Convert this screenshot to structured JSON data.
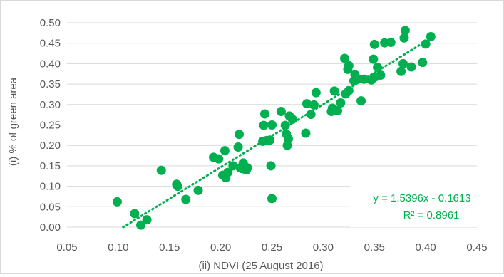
{
  "chart_data": {
    "type": "scatter",
    "xlabel": "(ii) NDVI (25 August 2016)",
    "ylabel": "(i) % of green area",
    "xlim": [
      0.05,
      0.45
    ],
    "ylim": [
      0.0,
      0.5
    ],
    "x_ticks": [
      "0.05",
      "0.10",
      "0.15",
      "0.20",
      "0.25",
      "0.30",
      "0.35",
      "0.40",
      "0.45"
    ],
    "y_ticks": [
      "0.00",
      "0.05",
      "0.10",
      "0.15",
      "0.20",
      "0.25",
      "0.30",
      "0.35",
      "0.40",
      "0.45",
      "0.50"
    ],
    "grid": "horizontal",
    "marker_color": "#00b050",
    "trendline": {
      "style": "dotted",
      "slope": 1.5396,
      "intercept": -0.1613,
      "equation": "y = 1.5396x - 0.1613",
      "r_squared": "R² = 0.8961"
    },
    "points": [
      [
        0.099,
        0.062
      ],
      [
        0.116,
        0.033
      ],
      [
        0.122,
        0.005
      ],
      [
        0.128,
        0.018
      ],
      [
        0.142,
        0.139
      ],
      [
        0.157,
        0.105
      ],
      [
        0.158,
        0.1
      ],
      [
        0.166,
        0.068
      ],
      [
        0.178,
        0.09
      ],
      [
        0.193,
        0.171
      ],
      [
        0.198,
        0.167
      ],
      [
        0.202,
        0.127
      ],
      [
        0.204,
        0.187
      ],
      [
        0.205,
        0.121
      ],
      [
        0.207,
        0.134
      ],
      [
        0.212,
        0.15
      ],
      [
        0.217,
        0.196
      ],
      [
        0.218,
        0.227
      ],
      [
        0.219,
        0.145
      ],
      [
        0.221,
        0.143
      ],
      [
        0.222,
        0.157
      ],
      [
        0.225,
        0.14
      ],
      [
        0.226,
        0.145
      ],
      [
        0.241,
        0.21
      ],
      [
        0.242,
        0.249
      ],
      [
        0.243,
        0.277
      ],
      [
        0.245,
        0.212
      ],
      [
        0.248,
        0.213
      ],
      [
        0.249,
        0.15
      ],
      [
        0.25,
        0.25
      ],
      [
        0.25,
        0.07
      ],
      [
        0.259,
        0.283
      ],
      [
        0.263,
        0.249
      ],
      [
        0.264,
        0.228
      ],
      [
        0.265,
        0.2
      ],
      [
        0.266,
        0.216
      ],
      [
        0.267,
        0.272
      ],
      [
        0.27,
        0.264
      ],
      [
        0.283,
        0.23
      ],
      [
        0.284,
        0.302
      ],
      [
        0.288,
        0.276
      ],
      [
        0.291,
        0.299
      ],
      [
        0.293,
        0.329
      ],
      [
        0.308,
        0.283
      ],
      [
        0.309,
        0.291
      ],
      [
        0.311,
        0.333
      ],
      [
        0.314,
        0.285
      ],
      [
        0.317,
        0.304
      ],
      [
        0.321,
        0.413
      ],
      [
        0.322,
        0.326
      ],
      [
        0.324,
        0.386
      ],
      [
        0.325,
        0.395
      ],
      [
        0.325,
        0.334
      ],
      [
        0.33,
        0.358
      ],
      [
        0.331,
        0.373
      ],
      [
        0.334,
        0.362
      ],
      [
        0.337,
        0.309
      ],
      [
        0.34,
        0.362
      ],
      [
        0.347,
        0.36
      ],
      [
        0.349,
        0.411
      ],
      [
        0.35,
        0.447
      ],
      [
        0.351,
        0.368
      ],
      [
        0.353,
        0.391
      ],
      [
        0.356,
        0.372
      ],
      [
        0.36,
        0.451
      ],
      [
        0.366,
        0.452
      ],
      [
        0.376,
        0.381
      ],
      [
        0.378,
        0.4
      ],
      [
        0.379,
        0.463
      ],
      [
        0.38,
        0.481
      ],
      [
        0.386,
        0.392
      ],
      [
        0.397,
        0.403
      ],
      [
        0.4,
        0.448
      ],
      [
        0.405,
        0.466
      ]
    ]
  }
}
